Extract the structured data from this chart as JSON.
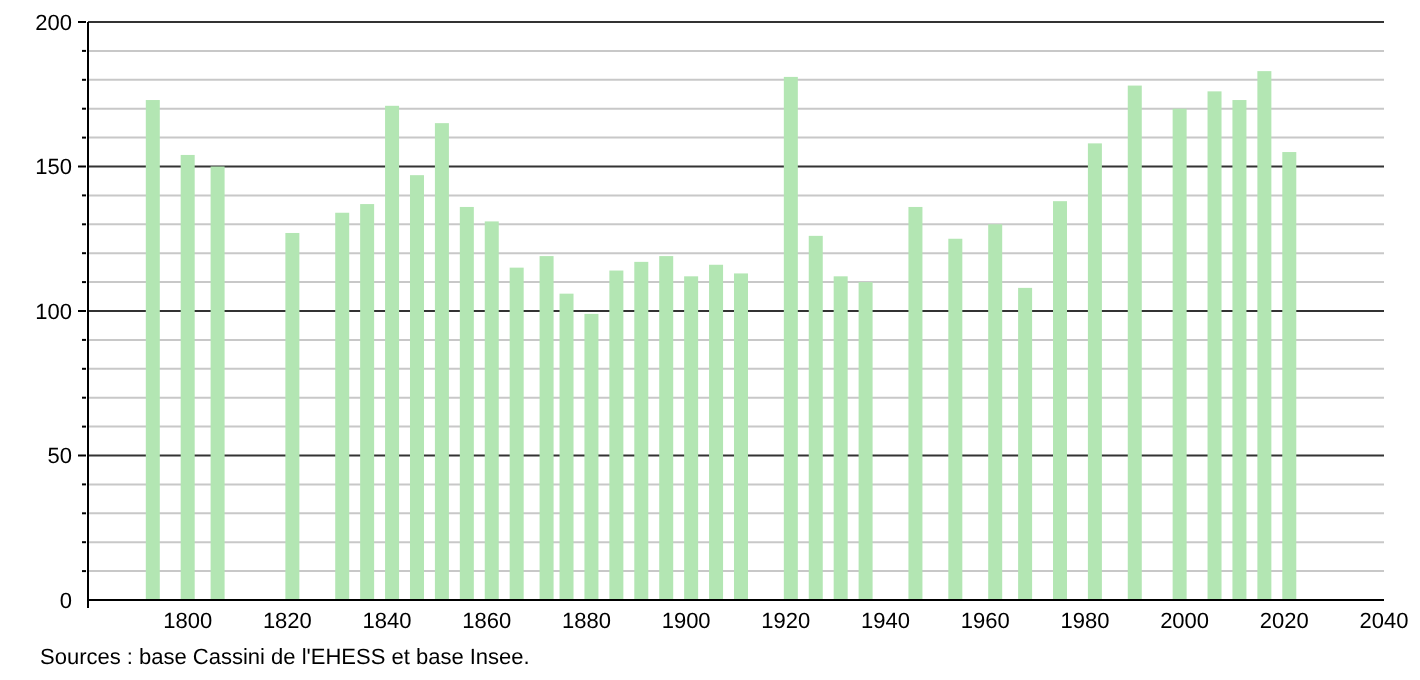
{
  "chart_data": {
    "type": "bar",
    "x": [
      1793,
      1800,
      1806,
      1821,
      1831,
      1836,
      1841,
      1846,
      1851,
      1856,
      1861,
      1866,
      1872,
      1876,
      1881,
      1886,
      1891,
      1896,
      1901,
      1906,
      1911,
      1921,
      1926,
      1931,
      1936,
      1946,
      1954,
      1962,
      1968,
      1975,
      1982,
      1990,
      1999,
      2006,
      2011,
      2016,
      2021
    ],
    "values": [
      173,
      154,
      150,
      127,
      134,
      137,
      171,
      147,
      165,
      136,
      131,
      115,
      119,
      106,
      99,
      114,
      117,
      119,
      112,
      116,
      113,
      181,
      126,
      112,
      110,
      136,
      125,
      130,
      108,
      138,
      158,
      178,
      170,
      176,
      173,
      183,
      155
    ],
    "color": "#b3e6b3",
    "xlim": [
      1780,
      2040
    ],
    "xticks": [
      1800,
      1820,
      1840,
      1860,
      1880,
      1900,
      1920,
      1940,
      1960,
      1980,
      2000,
      2020,
      2040
    ],
    "ylim": [
      0,
      200
    ],
    "yticks": [
      0,
      {
        "value": 10,
        "label": null
      },
      {
        "value": 20,
        "label": null
      },
      {
        "value": 30,
        "label": null
      },
      {
        "value": 40,
        "label": null
      },
      50,
      {
        "value": 60,
        "label": null
      },
      {
        "value": 70,
        "label": null
      },
      {
        "value": 80,
        "label": null
      },
      {
        "value": 90,
        "label": null
      },
      100,
      {
        "value": 110,
        "label": null
      },
      {
        "value": 120,
        "label": null
      },
      {
        "value": 130,
        "label": null
      },
      {
        "value": 140,
        "label": null
      },
      150,
      {
        "value": 160,
        "label": null
      },
      {
        "value": 170,
        "label": null
      },
      {
        "value": 180,
        "label": null
      },
      {
        "value": 190,
        "label": null
      },
      200
    ],
    "grid": "y",
    "annotations": [
      "Sources : base Cassini de l'EHESS et base Insee."
    ]
  }
}
